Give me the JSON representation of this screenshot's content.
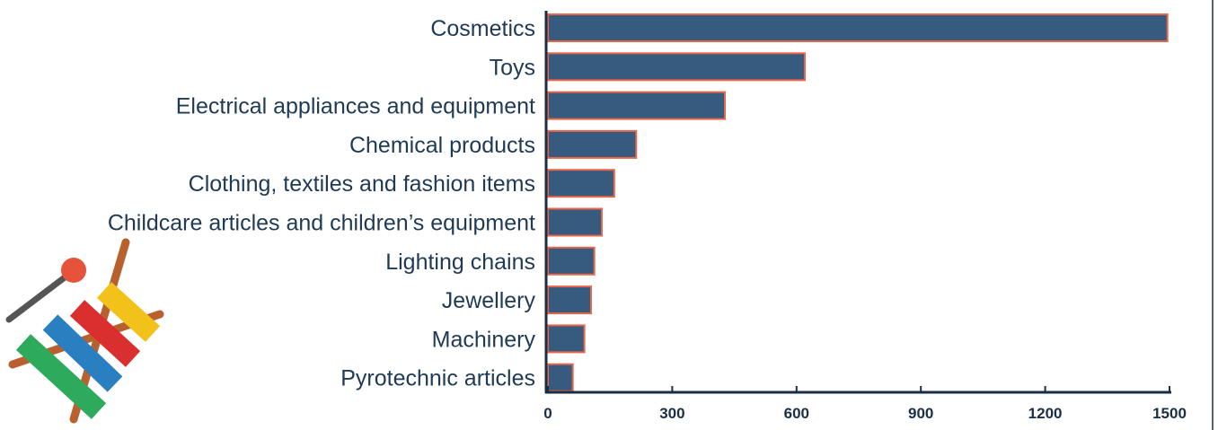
{
  "chart_data": {
    "type": "bar",
    "orientation": "horizontal",
    "categories": [
      "Cosmetics",
      "Toys",
      "Electrical appliances and equipment",
      "Chemical products",
      "Clothing, textiles and fashion items",
      "Childcare articles and children’s equipment",
      "Lighting chains",
      "Jewellery",
      "Machinery",
      "Pyrotechnic articles"
    ],
    "values": [
      1495,
      620,
      427,
      213,
      160,
      130,
      112,
      104,
      88,
      60
    ],
    "xlim": [
      0,
      1500
    ],
    "xticks": [
      0,
      300,
      600,
      900,
      1200,
      1500
    ],
    "title": "",
    "xlabel": "",
    "ylabel": "",
    "grid": false,
    "colors": {
      "bar_fill": "#375a7f",
      "bar_edge": "#e8674a",
      "label_text": "#1f3a55",
      "axis": "#1a2f45"
    }
  },
  "decoration": {
    "icon": "xylophone-icon",
    "colors": [
      "#2eaa5c",
      "#2a7fc1",
      "#d9302f",
      "#f2c21b",
      "#b8612e",
      "#e6533a",
      "#555555"
    ]
  }
}
